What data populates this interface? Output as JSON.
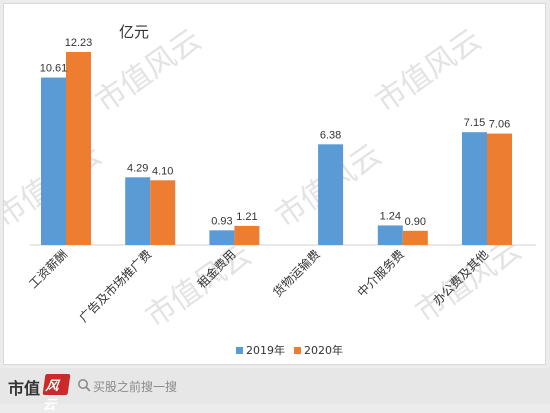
{
  "chart_data": {
    "type": "bar",
    "unit_label": "亿元",
    "categories": [
      "工资薪酬",
      "广告及市场推广费",
      "租金费用",
      "货物运输费",
      "中介服务费",
      "办公费及其他"
    ],
    "series": [
      {
        "name": "2019年",
        "color": "#5b9bd5",
        "values": [
          10.61,
          4.29,
          0.93,
          6.38,
          1.24,
          7.15
        ],
        "labels": [
          "10.61",
          "4.29",
          "0.93",
          "6.38",
          "1.24",
          "7.15"
        ]
      },
      {
        "name": "2020年",
        "color": "#ed7d31",
        "values": [
          12.23,
          4.1,
          1.21,
          null,
          0.9,
          7.06
        ],
        "labels": [
          "12.23",
          "4.10",
          "1.21",
          "",
          "0.90",
          "7.06"
        ]
      }
    ],
    "ylim": [
      0,
      12.23
    ],
    "grid": false,
    "legend_position": "bottom-center"
  },
  "watermark": {
    "text": "市值风云",
    "color": "#e3e3e3"
  },
  "footer": {
    "brand": "市值",
    "brand_stamp": "风云",
    "search_placeholder": "买股之前搜一搜"
  }
}
